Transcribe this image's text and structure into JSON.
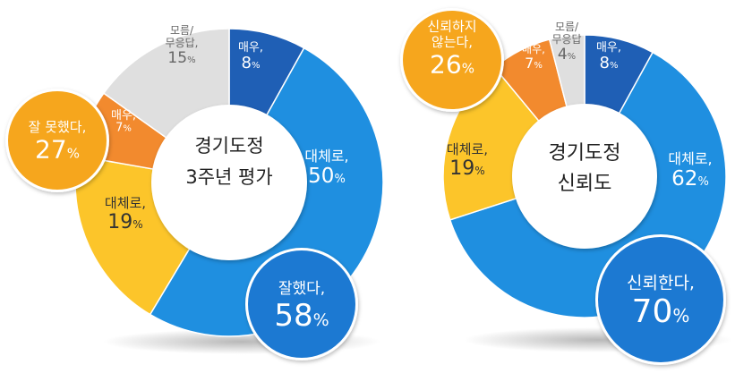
{
  "colors": {
    "dark_blue": "#1f5fb5",
    "blue": "#1f8fe0",
    "yellow": "#fcc52a",
    "orange": "#f28a2e",
    "gray": "#dfdfdf",
    "amber": "#f6a61d",
    "bubble_blue": "#1c79d2",
    "text_dark": "#333333",
    "text_gray": "#666666"
  },
  "chart_data": [
    {
      "type": "pie",
      "center_label": [
        "경기도정",
        "3주년 평가"
      ],
      "slices": [
        {
          "label": "매우,",
          "value": 8,
          "unit": "%",
          "color": "dark_blue"
        },
        {
          "label": "대체로,",
          "value": 50,
          "unit": "%",
          "color": "blue"
        },
        {
          "label": "대체로,",
          "value": 19,
          "unit": "%",
          "color": "yellow"
        },
        {
          "label": "매우,",
          "value": 7,
          "unit": "%",
          "color": "orange"
        },
        {
          "label": "모름/\n무응답,",
          "value": 15,
          "unit": "%",
          "color": "gray"
        }
      ],
      "bubbles": [
        {
          "label": "잘했다,",
          "value": 58,
          "unit": "%",
          "color": "bubble_blue"
        },
        {
          "label": "잘 못했다,",
          "value": 27,
          "unit": "%",
          "color": "amber"
        }
      ]
    },
    {
      "type": "pie",
      "center_label": [
        "경기도정",
        "신뢰도"
      ],
      "slices": [
        {
          "label": "매우,",
          "value": 8,
          "unit": "%",
          "color": "dark_blue"
        },
        {
          "label": "대체로,",
          "value": 62,
          "unit": "%",
          "color": "blue"
        },
        {
          "label": "대체로,",
          "value": 19,
          "unit": "%",
          "color": "yellow"
        },
        {
          "label": "매우,",
          "value": 7,
          "unit": "%",
          "color": "orange"
        },
        {
          "label": "모름/\n무응답",
          "value": 4,
          "unit": "%",
          "color": "gray"
        }
      ],
      "bubbles": [
        {
          "label": "신뢰한다,",
          "value": 70,
          "unit": "%",
          "color": "bubble_blue"
        },
        {
          "label": "신뢰하지\n않는다,",
          "value": 26,
          "unit": "%",
          "color": "amber"
        }
      ]
    }
  ]
}
